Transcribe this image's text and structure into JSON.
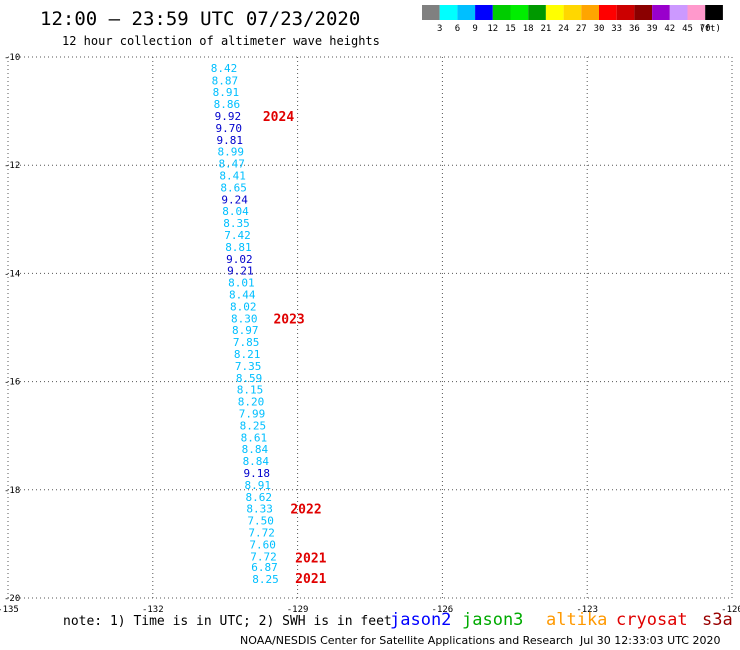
{
  "title": "12:00 – 23:59 UTC 07/23/2020",
  "subtitle": "12 hour collection of altimeter wave heights",
  "colorbar": {
    "colors": [
      "#808080",
      "#00ffff",
      "#00bfff",
      "#0000ff",
      "#00cc00",
      "#00ee00",
      "#009900",
      "#ffff00",
      "#ffd700",
      "#ffa500",
      "#ff0000",
      "#cc0000",
      "#8b0000",
      "#9900cc",
      "#cc99ff",
      "#ff99cc",
      "#000000"
    ],
    "labels": [
      "3",
      "6",
      "9",
      "12",
      "15",
      "18",
      "21",
      "24",
      "27",
      "30",
      "33",
      "36",
      "39",
      "42",
      "45",
      "70"
    ],
    "unit": "(ft)"
  },
  "note": "note: 1) Time is in UTC; 2) SWH is in feet",
  "satellites": [
    {
      "name": "jason2",
      "color": "#0000ff"
    },
    {
      "name": "jason3",
      "color": "#00aa00"
    },
    {
      "name": "altika",
      "color": "#ff9900"
    },
    {
      "name": "cryosat",
      "color": "#e00000"
    },
    {
      "name": "s3a",
      "color": "#990000"
    }
  ],
  "credit": "NOAA/NESDIS Center for Satellite Applications and Research",
  "timestamp": "Jul 30 12:33:03 UTC 2020",
  "chart_data": {
    "type": "scatter",
    "xlim": [
      -135,
      -120
    ],
    "ylim": [
      -20,
      -10
    ],
    "x_ticks": [
      -135,
      -132,
      -129,
      -126,
      -123,
      -120
    ],
    "x_tick_labels": [
      "-135",
      "-132",
      "-129",
      "-126",
      "-123",
      "-120"
    ],
    "y_ticks": [
      -10,
      -12,
      -14,
      -16,
      -18,
      -20
    ],
    "y_tick_labels": [
      "-10",
      "-12",
      "-14",
      "-16",
      "-18",
      "-20"
    ],
    "grid": true,
    "points": [
      {
        "lon": -130.8,
        "lat": -10.2,
        "swh": "8.42",
        "color": "#00bfff"
      },
      {
        "lon": -130.78,
        "lat": -10.43,
        "swh": "8.87",
        "color": "#00bfff"
      },
      {
        "lon": -130.76,
        "lat": -10.65,
        "swh": "8.91",
        "color": "#00bfff"
      },
      {
        "lon": -130.74,
        "lat": -10.87,
        "swh": "8.86",
        "color": "#00bfff"
      },
      {
        "lon": -130.72,
        "lat": -11.09,
        "swh": "9.92",
        "color": "#0000cc"
      },
      {
        "lon": -130.7,
        "lat": -11.31,
        "swh": "9.70",
        "color": "#0000cc"
      },
      {
        "lon": -130.68,
        "lat": -11.53,
        "swh": "9.81",
        "color": "#0000cc"
      },
      {
        "lon": -130.66,
        "lat": -11.75,
        "swh": "8.99",
        "color": "#00bfff"
      },
      {
        "lon": -130.64,
        "lat": -11.97,
        "swh": "8.47",
        "color": "#00bfff"
      },
      {
        "lon": -130.62,
        "lat": -12.19,
        "swh": "8.41",
        "color": "#00bfff"
      },
      {
        "lon": -130.6,
        "lat": -12.41,
        "swh": "8.65",
        "color": "#00bfff"
      },
      {
        "lon": -130.58,
        "lat": -12.63,
        "swh": "9.24",
        "color": "#0000cc"
      },
      {
        "lon": -130.56,
        "lat": -12.85,
        "swh": "8.04",
        "color": "#00bfff"
      },
      {
        "lon": -130.54,
        "lat": -13.07,
        "swh": "8.35",
        "color": "#00bfff"
      },
      {
        "lon": -130.52,
        "lat": -13.29,
        "swh": "7.42",
        "color": "#00bfff"
      },
      {
        "lon": -130.5,
        "lat": -13.51,
        "swh": "8.81",
        "color": "#00bfff"
      },
      {
        "lon": -130.48,
        "lat": -13.73,
        "swh": "9.02",
        "color": "#0000cc"
      },
      {
        "lon": -130.46,
        "lat": -13.95,
        "swh": "9.21",
        "color": "#0000cc"
      },
      {
        "lon": -130.44,
        "lat": -14.17,
        "swh": "8.01",
        "color": "#00bfff"
      },
      {
        "lon": -130.42,
        "lat": -14.39,
        "swh": "8.44",
        "color": "#00bfff"
      },
      {
        "lon": -130.4,
        "lat": -14.61,
        "swh": "8.02",
        "color": "#00bfff"
      },
      {
        "lon": -130.38,
        "lat": -14.83,
        "swh": "8.30",
        "color": "#00bfff"
      },
      {
        "lon": -130.36,
        "lat": -15.05,
        "swh": "8.97",
        "color": "#00bfff"
      },
      {
        "lon": -130.34,
        "lat": -15.27,
        "swh": "7.85",
        "color": "#00bfff"
      },
      {
        "lon": -130.32,
        "lat": -15.49,
        "swh": "8.21",
        "color": "#00bfff"
      },
      {
        "lon": -130.3,
        "lat": -15.71,
        "swh": "7.35",
        "color": "#00bfff"
      },
      {
        "lon": -130.28,
        "lat": -15.93,
        "swh": "8.59",
        "color": "#00bfff"
      },
      {
        "lon": -130.26,
        "lat": -16.15,
        "swh": "8.15",
        "color": "#00bfff"
      },
      {
        "lon": -130.24,
        "lat": -16.37,
        "swh": "8.20",
        "color": "#00bfff"
      },
      {
        "lon": -130.22,
        "lat": -16.59,
        "swh": "7.99",
        "color": "#00bfff"
      },
      {
        "lon": -130.2,
        "lat": -16.81,
        "swh": "8.25",
        "color": "#00bfff"
      },
      {
        "lon": -130.18,
        "lat": -17.03,
        "swh": "8.61",
        "color": "#00bfff"
      },
      {
        "lon": -130.16,
        "lat": -17.25,
        "swh": "8.84",
        "color": "#00bfff"
      },
      {
        "lon": -130.14,
        "lat": -17.47,
        "swh": "8.84",
        "color": "#00bfff"
      },
      {
        "lon": -130.12,
        "lat": -17.69,
        "swh": "9.18",
        "color": "#0000cc"
      },
      {
        "lon": -130.1,
        "lat": -17.91,
        "swh": "8.91",
        "color": "#00bfff"
      },
      {
        "lon": -130.08,
        "lat": -18.13,
        "swh": "8.62",
        "color": "#00bfff"
      },
      {
        "lon": -130.06,
        "lat": -18.35,
        "swh": "8.33",
        "color": "#00bfff"
      },
      {
        "lon": -130.04,
        "lat": -18.57,
        "swh": "7.50",
        "color": "#00bfff"
      },
      {
        "lon": -130.02,
        "lat": -18.79,
        "swh": "7.72",
        "color": "#00bfff"
      },
      {
        "lon": -130.0,
        "lat": -19.01,
        "swh": "7.60",
        "color": "#00bfff"
      },
      {
        "lon": -129.98,
        "lat": -19.23,
        "swh": "7.72",
        "color": "#00bfff"
      },
      {
        "lon": -129.96,
        "lat": -19.43,
        "swh": "6.87",
        "color": "#00bfff"
      },
      {
        "lon": -129.94,
        "lat": -19.65,
        "swh": "8.25",
        "color": "#00bfff"
      }
    ],
    "pass_labels": [
      {
        "lon": -129.72,
        "lat": -11.09,
        "text": "2024"
      },
      {
        "lon": -129.5,
        "lat": -14.83,
        "text": "2023"
      },
      {
        "lon": -129.15,
        "lat": -18.35,
        "text": "2022"
      },
      {
        "lon": -129.05,
        "lat": -19.25,
        "text": "2021"
      },
      {
        "lon": -129.05,
        "lat": -19.63,
        "text": "2021"
      }
    ]
  }
}
